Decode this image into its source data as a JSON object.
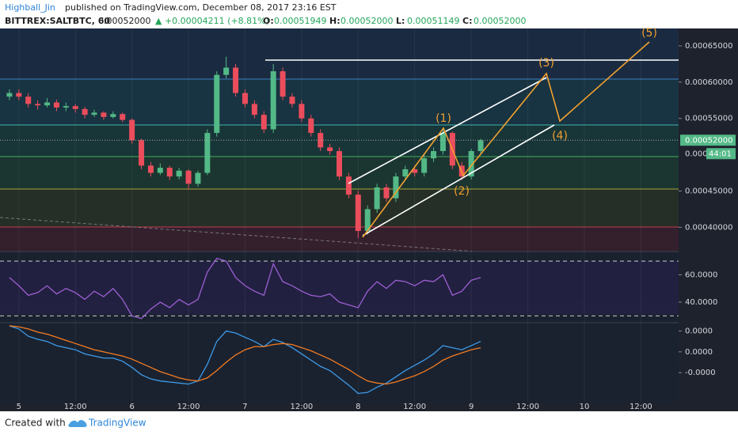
{
  "header": {
    "author": "Highball_Jin",
    "published": "published on TradingView.com, December 08, 2017 23:16 EST",
    "symbol": "BITTREX:SALTBTC, 60",
    "price": "0.00052000",
    "change": "▲ +0.00004211 (+8.81%)",
    "ohlc": [
      {
        "label": "O:",
        "value": "0.00051949"
      },
      {
        "label": "H:",
        "value": "0.00052000"
      },
      {
        "label": "L:",
        "value": "0.00051149"
      },
      {
        "label": "C:",
        "value": "0.00052000"
      }
    ]
  },
  "annotations": [
    "(1)",
    "(2)",
    "(3)",
    "(4)",
    "(5)"
  ],
  "footer": {
    "created": "Created with",
    "brand": "TradingView"
  },
  "chart_data": [
    {
      "type": "candlestick",
      "up_color": "#53b987",
      "down_color": "#eb4d5c",
      "xlim": [
        -1,
        71
      ],
      "xticks": [
        {
          "value": 1,
          "label": "5"
        },
        {
          "value": 7,
          "label": "12:00"
        },
        {
          "value": 13,
          "label": "6"
        },
        {
          "value": 19,
          "label": "12:00"
        },
        {
          "value": 25,
          "label": "7"
        },
        {
          "value": 31,
          "label": "12:00"
        },
        {
          "value": 37,
          "label": "8"
        },
        {
          "value": 43,
          "label": "12:00"
        },
        {
          "value": 49,
          "label": "9"
        },
        {
          "value": 55,
          "label": "12:00"
        },
        {
          "value": 61,
          "label": "10"
        },
        {
          "value": 67,
          "label": "12:00"
        }
      ],
      "ylim": [
        0.00036665,
        0.00067391
      ],
      "yticks": [
        {
          "value": 0.00065,
          "label": "0.00065000"
        },
        {
          "value": 0.0006,
          "label": "0.00060000"
        },
        {
          "value": 0.00055,
          "label": "0.00055000"
        },
        {
          "value": 0.00045,
          "label": "0.00045000"
        },
        {
          "value": 0.0004,
          "label": "0.00040000"
        }
      ],
      "last_price": {
        "value": 0.00052,
        "label": "0.00052000"
      },
      "price_partial": "0.000",
      "countdown": "44:01",
      "candles": [
        [
          0.00058,
          0.00059,
          0.000575,
          0.000585
        ],
        [
          0.000585,
          0.00059,
          0.000575,
          0.00058
        ],
        [
          0.00058,
          0.000585,
          0.000565,
          0.00057
        ],
        [
          0.00057,
          0.000575,
          0.000562,
          0.000568
        ],
        [
          0.000568,
          0.000578,
          0.000565,
          0.000572
        ],
        [
          0.000572,
          0.000576,
          0.00056,
          0.000565
        ],
        [
          0.000565,
          0.000572,
          0.00056,
          0.000567
        ],
        [
          0.000567,
          0.00057,
          0.000558,
          0.000563
        ],
        [
          0.000563,
          0.000566,
          0.00055,
          0.000555
        ],
        [
          0.000555,
          0.000562,
          0.000552,
          0.000558
        ],
        [
          0.000558,
          0.00056,
          0.000548,
          0.000552
        ],
        [
          0.000552,
          0.00056,
          0.00055,
          0.000556
        ],
        [
          0.000556,
          0.000558,
          0.000545,
          0.000548
        ],
        [
          0.000548,
          0.00055,
          0.000515,
          0.00052
        ],
        [
          0.00052,
          0.000522,
          0.00048,
          0.000485
        ],
        [
          0.000485,
          0.00049,
          0.00047,
          0.000475
        ],
        [
          0.000475,
          0.000488,
          0.000472,
          0.000482
        ],
        [
          0.000482,
          0.000485,
          0.000465,
          0.00047
        ],
        [
          0.00047,
          0.000482,
          0.000466,
          0.000478
        ],
        [
          0.000478,
          0.00048,
          0.000452,
          0.00046
        ],
        [
          0.00046,
          0.000478,
          0.000456,
          0.000475
        ],
        [
          0.000475,
          0.000535,
          0.000472,
          0.00053
        ],
        [
          0.00053,
          0.000615,
          0.000525,
          0.00061
        ],
        [
          0.00061,
          0.000635,
          0.000605,
          0.00062
        ],
        [
          0.00062,
          0.000625,
          0.00058,
          0.000585
        ],
        [
          0.000585,
          0.00059,
          0.000565,
          0.00057
        ],
        [
          0.00057,
          0.000575,
          0.00055,
          0.000555
        ],
        [
          0.000555,
          0.00056,
          0.00053,
          0.000535
        ],
        [
          0.000535,
          0.000625,
          0.00053,
          0.000615
        ],
        [
          0.000615,
          0.00062,
          0.000575,
          0.00058
        ],
        [
          0.00058,
          0.000585,
          0.000565,
          0.00057
        ],
        [
          0.00057,
          0.000575,
          0.000545,
          0.00055
        ],
        [
          0.00055,
          0.000555,
          0.000525,
          0.00053
        ],
        [
          0.00053,
          0.000535,
          0.000505,
          0.00051
        ],
        [
          0.00051,
          0.000515,
          0.0005,
          0.000505
        ],
        [
          0.000505,
          0.00051,
          0.000465,
          0.00047
        ],
        [
          0.00047,
          0.000475,
          0.00044,
          0.000445
        ],
        [
          0.000445,
          0.00045,
          0.000385,
          0.000395
        ],
        [
          0.000395,
          0.00043,
          0.00039,
          0.000425
        ],
        [
          0.000425,
          0.00046,
          0.00042,
          0.000455
        ],
        [
          0.000455,
          0.00046,
          0.000435,
          0.00044
        ],
        [
          0.00044,
          0.000475,
          0.000435,
          0.00047
        ],
        [
          0.00047,
          0.000485,
          0.000465,
          0.00048
        ],
        [
          0.00048,
          0.000485,
          0.00047,
          0.000475
        ],
        [
          0.000475,
          0.0005,
          0.00047,
          0.000495
        ],
        [
          0.000495,
          0.00051,
          0.00049,
          0.000505
        ],
        [
          0.000505,
          0.000535,
          0.0005,
          0.00053
        ],
        [
          0.00053,
          0.000532,
          0.00048,
          0.000485
        ],
        [
          0.000485,
          0.00049,
          0.000465,
          0.00047
        ],
        [
          0.00047,
          0.000508,
          0.000466,
          0.000505
        ],
        [
          0.000505,
          0.000522,
          0.0005,
          0.00052
        ]
      ]
    },
    {
      "type": "line",
      "color": "#9c5fd1",
      "ylim": [
        25,
        77
      ],
      "bands": [
        30,
        70
      ],
      "yticks": [
        {
          "value": 60,
          "label": "60.0000"
        },
        {
          "value": 40,
          "label": "40.0000"
        }
      ],
      "values": [
        58,
        52,
        45,
        47,
        52,
        46,
        50,
        47,
        42,
        48,
        44,
        50,
        42,
        30,
        28,
        35,
        40,
        36,
        42,
        38,
        42,
        62,
        72,
        70,
        58,
        52,
        48,
        45,
        68,
        55,
        52,
        48,
        45,
        44,
        46,
        40,
        38,
        36,
        48,
        55,
        50,
        56,
        55,
        52,
        56,
        55,
        60,
        45,
        48,
        56,
        58
      ]
    },
    {
      "type": "line",
      "ylim": [
        -4.8e-05,
        2.8e-05
      ],
      "yticks": [
        {
          "value": 2e-05,
          "label": "0.0000"
        },
        {
          "value": 0,
          "label": "0.0000"
        },
        {
          "value": -2e-05,
          "label": "-0.0000"
        }
      ],
      "series": [
        {
          "color": "#3d9be9",
          "values": [
            2.5e-05,
            2.2e-05,
            1.5e-05,
            1.2e-05,
            1e-05,
            6e-06,
            4e-06,
            2e-06,
            -2e-06,
            -4e-06,
            -6e-06,
            -6e-06,
            -9e-06,
            -1.5e-05,
            -2.2e-05,
            -2.6e-05,
            -2.8e-05,
            -2.9e-05,
            -3e-05,
            -3.1e-05,
            -2.8e-05,
            -1.2e-05,
            1e-05,
            2e-05,
            1.8e-05,
            1.4e-05,
            1e-05,
            5e-06,
            1.2e-05,
            9e-06,
            4e-06,
            -2e-06,
            -8e-06,
            -1.4e-05,
            -1.8e-05,
            -2.5e-05,
            -3.2e-05,
            -4e-05,
            -3.9e-05,
            -3.4e-05,
            -3e-05,
            -2.4e-05,
            -1.8e-05,
            -1.3e-05,
            -8e-06,
            -2e-06,
            6e-06,
            4e-06,
            2e-06,
            6e-06,
            1e-05
          ]
        },
        {
          "color": "#f57c20",
          "values": [
            2.5e-05,
            2.4e-05,
            2.2e-05,
            1.9e-05,
            1.7e-05,
            1.4e-05,
            1.1e-05,
            8e-06,
            5e-06,
            2e-06,
            0,
            -2e-06,
            -4e-06,
            -7e-06,
            -1.1e-05,
            -1.5e-05,
            -1.9e-05,
            -2.2e-05,
            -2.5e-05,
            -2.7e-05,
            -2.8e-05,
            -2.5e-05,
            -1.8e-05,
            -1e-05,
            -3e-06,
            2e-06,
            5e-06,
            5e-06,
            7e-06,
            8e-06,
            7e-06,
            4e-06,
            1e-06,
            -3e-06,
            -7e-06,
            -1.2e-05,
            -1.7e-05,
            -2.3e-05,
            -2.8e-05,
            -3e-05,
            -3.1e-05,
            -2.9e-05,
            -2.6e-05,
            -2.3e-05,
            -1.9e-05,
            -1.4e-05,
            -8e-06,
            -4e-06,
            -1e-06,
            2e-06,
            4e-06
          ]
        }
      ]
    }
  ]
}
